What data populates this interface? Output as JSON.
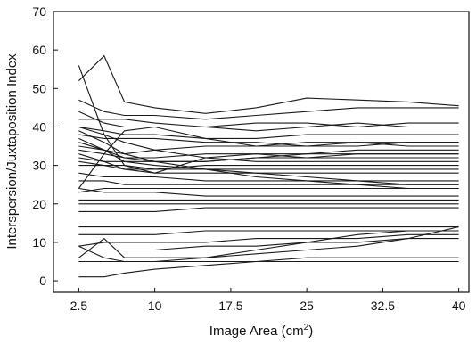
{
  "chart_data": {
    "type": "line",
    "xlabel_main": "Image Area (cm",
    "xlabel_sup": "2",
    "xlabel_close": ")",
    "ylabel": "Interspersion/Juxtaposition Index",
    "x_ticks": [
      2.5,
      10,
      17.5,
      25,
      32.5,
      40
    ],
    "x_tick_labels": [
      "2.5",
      "10",
      "17.5",
      "25",
      "32.5",
      "40"
    ],
    "y_ticks": [
      0,
      10,
      20,
      30,
      40,
      50,
      60,
      70
    ],
    "y_tick_labels": [
      "0",
      "10",
      "20",
      "30",
      "40",
      "50",
      "60",
      "70"
    ],
    "xlim": [
      0,
      41
    ],
    "ylim": [
      -3,
      70
    ],
    "grid": false,
    "legend": "none",
    "line_color": "#1a1a1a",
    "series": [
      {
        "x": [
          2.5,
          5,
          7,
          10,
          15,
          20,
          25,
          30,
          35,
          40
        ],
        "y": [
          52,
          58.5,
          46.5,
          45,
          43.5,
          45,
          47.5,
          47,
          46.5,
          45.5
        ]
      },
      {
        "x": [
          2.5,
          5,
          7,
          10,
          15,
          20,
          25,
          30,
          35,
          40
        ],
        "y": [
          56,
          38,
          30,
          28,
          32,
          33,
          32,
          33,
          33,
          33
        ]
      },
      {
        "x": [
          2.5,
          5,
          7,
          10,
          15,
          20,
          25,
          30,
          35,
          40
        ],
        "y": [
          47,
          44,
          43,
          43,
          42,
          43,
          44,
          45,
          45,
          45
        ]
      },
      {
        "x": [
          2.5,
          5,
          7,
          10,
          15,
          20,
          25,
          30,
          35,
          40
        ],
        "y": [
          44,
          41,
          40,
          40,
          40,
          41,
          41,
          40,
          41,
          41
        ]
      },
      {
        "x": [
          2.5,
          5,
          7,
          10,
          15,
          20,
          25,
          30,
          35,
          40
        ],
        "y": [
          42,
          42,
          42,
          41,
          40,
          39,
          40,
          41,
          40,
          40
        ]
      },
      {
        "x": [
          2.5,
          5,
          7,
          10,
          15,
          20,
          25,
          30,
          35,
          40
        ],
        "y": [
          40,
          39,
          38,
          38,
          37,
          37,
          38,
          38,
          38,
          38
        ]
      },
      {
        "x": [
          2.5,
          5,
          7,
          10,
          15,
          20,
          25,
          30,
          35,
          40
        ],
        "y": [
          38,
          37,
          37,
          37,
          36,
          36,
          35,
          35,
          36,
          36
        ]
      },
      {
        "x": [
          2.5,
          5,
          7,
          10,
          15,
          20,
          25,
          30,
          35,
          40
        ],
        "y": [
          35,
          34,
          33,
          34,
          35,
          35,
          36,
          36,
          36,
          36
        ]
      },
      {
        "x": [
          2.5,
          5,
          7,
          10,
          15,
          20,
          25,
          30,
          35,
          40
        ],
        "y": [
          24,
          33,
          39,
          40,
          37,
          35,
          35,
          36,
          35,
          35
        ]
      },
      {
        "x": [
          2.5,
          5,
          7,
          10,
          15,
          20,
          25,
          30,
          35,
          40
        ],
        "y": [
          36,
          34,
          32,
          31,
          31,
          32,
          33,
          34,
          34,
          34
        ]
      },
      {
        "x": [
          2.5,
          5,
          7,
          10,
          15,
          20,
          25,
          30,
          35,
          40
        ],
        "y": [
          34,
          33,
          32,
          32,
          33,
          33,
          33,
          33,
          33,
          33
        ]
      },
      {
        "x": [
          2.5,
          5,
          7,
          10,
          15,
          20,
          25,
          30,
          35,
          40
        ],
        "y": [
          32,
          31,
          31,
          31,
          31,
          32,
          32,
          32,
          32,
          32
        ]
      },
      {
        "x": [
          2.5,
          5,
          7,
          10,
          15,
          20,
          25,
          30,
          35,
          40
        ],
        "y": [
          40,
          38,
          36,
          34,
          32,
          31,
          31,
          31,
          31,
          31
        ]
      },
      {
        "x": [
          2.5,
          5,
          7,
          10,
          15,
          20,
          25,
          30,
          35,
          40
        ],
        "y": [
          31,
          30,
          30,
          29,
          30,
          30,
          30,
          30,
          30,
          30
        ]
      },
      {
        "x": [
          2.5,
          5,
          7,
          10,
          15,
          20,
          25,
          30,
          35,
          40
        ],
        "y": [
          30,
          30,
          29,
          29,
          29,
          29,
          29,
          29,
          29,
          29
        ]
      },
      {
        "x": [
          2.5,
          5,
          7,
          10,
          15,
          20,
          25,
          30,
          35,
          40
        ],
        "y": [
          33,
          31,
          29,
          28,
          28,
          28,
          28,
          28,
          28,
          28
        ]
      },
      {
        "x": [
          2.5,
          5,
          7,
          10,
          15,
          20,
          25,
          30,
          35,
          40
        ],
        "y": [
          37,
          34,
          31,
          30,
          29,
          28,
          27,
          26,
          25,
          25
        ]
      },
      {
        "x": [
          2.5,
          5,
          7,
          10,
          15,
          20,
          25,
          30,
          35,
          40
        ],
        "y": [
          39,
          36,
          33,
          31,
          29,
          27,
          26,
          25,
          24,
          24
        ]
      },
      {
        "x": [
          2.5,
          5,
          7,
          10,
          15,
          20,
          25,
          30,
          35,
          40
        ],
        "y": [
          28,
          27,
          27,
          27,
          26,
          26,
          26,
          26,
          26,
          26
        ]
      },
      {
        "x": [
          2.5,
          5,
          7,
          10,
          15,
          20,
          25,
          30,
          35,
          40
        ],
        "y": [
          26,
          26,
          25,
          25,
          25,
          25,
          25,
          25,
          25,
          25
        ]
      },
      {
        "x": [
          2.5,
          5,
          7,
          10,
          15,
          20,
          25,
          30,
          35,
          40
        ],
        "y": [
          23,
          24,
          24,
          24,
          24,
          24,
          24,
          24,
          24,
          24
        ]
      },
      {
        "x": [
          2.5,
          5,
          7,
          10,
          15,
          20,
          25,
          30,
          35,
          40
        ],
        "y": [
          24,
          23,
          23,
          23,
          22,
          22,
          22,
          22,
          22,
          22
        ]
      },
      {
        "x": [
          2.5,
          5,
          7,
          10,
          15,
          20,
          25,
          30,
          35,
          40
        ],
        "y": [
          21,
          21,
          21,
          21,
          21,
          21,
          21,
          21,
          21,
          21
        ]
      },
      {
        "x": [
          2.5,
          5,
          7,
          10,
          15,
          20,
          25,
          30,
          35,
          40
        ],
        "y": [
          20,
          20,
          20,
          20,
          20,
          20,
          20,
          20,
          20,
          20
        ]
      },
      {
        "x": [
          2.5,
          5,
          7,
          10,
          15,
          20,
          25,
          30,
          35,
          40
        ],
        "y": [
          18,
          18,
          18,
          18,
          19,
          19,
          19,
          19,
          19,
          19
        ]
      },
      {
        "x": [
          2.5,
          5,
          7,
          10,
          15,
          20,
          25,
          30,
          35,
          40
        ],
        "y": [
          14,
          14,
          14,
          14,
          14,
          14,
          14,
          14,
          14,
          14
        ]
      },
      {
        "x": [
          2.5,
          5,
          7,
          10,
          15,
          20,
          25,
          30,
          35,
          40
        ],
        "y": [
          12,
          12,
          12,
          12,
          13,
          13,
          13,
          13,
          13,
          13
        ]
      },
      {
        "x": [
          2.5,
          5,
          7,
          10,
          15,
          20,
          25,
          30,
          35,
          40
        ],
        "y": [
          9,
          10,
          10,
          10,
          10,
          11,
          11,
          11,
          12,
          12
        ]
      },
      {
        "x": [
          2.5,
          5,
          7,
          10,
          15,
          20,
          25,
          30,
          35,
          40
        ],
        "y": [
          8,
          8,
          8,
          8,
          9,
          9,
          10,
          10,
          11,
          11
        ]
      },
      {
        "x": [
          2.5,
          5,
          7,
          10,
          15,
          20,
          25,
          30,
          35,
          40
        ],
        "y": [
          6,
          11,
          6,
          6,
          6,
          7,
          8,
          9,
          11,
          14
        ]
      },
      {
        "x": [
          2.5,
          5,
          7,
          10,
          15,
          20,
          25,
          30,
          35,
          40
        ],
        "y": [
          5,
          5,
          5,
          5,
          5,
          5,
          5,
          5,
          5,
          5
        ]
      },
      {
        "x": [
          2.5,
          5,
          7,
          10,
          15,
          20,
          25,
          30,
          35,
          40
        ],
        "y": [
          1,
          1,
          2,
          3,
          4,
          5,
          6,
          6,
          6,
          6
        ]
      },
      {
        "x": [
          2.5,
          5,
          7,
          10,
          15,
          20,
          25,
          30,
          35,
          40
        ],
        "y": [
          9,
          6,
          5,
          5,
          6,
          8,
          10,
          12,
          13,
          13
        ]
      }
    ]
  }
}
